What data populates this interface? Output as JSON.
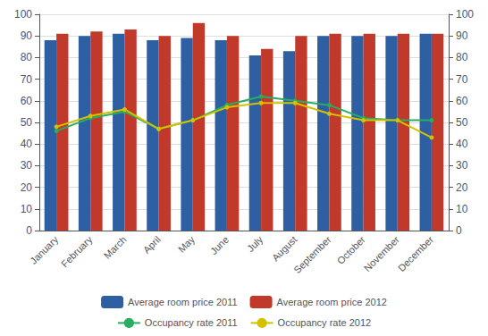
{
  "chart_data": {
    "type": "bar",
    "categories": [
      "January",
      "February",
      "March",
      "April",
      "May",
      "June",
      "July",
      "August",
      "September",
      "October",
      "November",
      "December"
    ],
    "series": [
      {
        "name": "Average room price 2011",
        "type": "bar",
        "color": "#2e5fa3",
        "values": [
          88,
          90,
          91,
          88,
          89,
          88,
          81,
          83,
          90,
          90,
          90,
          91
        ]
      },
      {
        "name": "Average room price 2012",
        "type": "bar",
        "color": "#c0392b",
        "values": [
          91,
          92,
          93,
          90,
          96,
          90,
          84,
          90,
          91,
          91,
          91,
          91
        ]
      },
      {
        "name": "Occupancy rate 2011",
        "type": "line",
        "axis": "y2",
        "marker": "circle",
        "color": "#27ae60",
        "values": [
          46,
          52,
          55,
          47,
          51,
          58,
          62,
          60,
          58,
          52,
          51,
          51
        ]
      },
      {
        "name": "Occupancy rate 2012",
        "type": "line",
        "axis": "y2",
        "marker": "circle",
        "color": "#d4c200",
        "values": [
          48,
          53,
          56,
          47,
          51,
          57,
          59,
          59,
          54,
          51,
          51,
          43
        ]
      }
    ],
    "ylim": [
      0,
      100
    ],
    "yticks": [
      0,
      10,
      20,
      30,
      40,
      50,
      60,
      70,
      80,
      90,
      100
    ],
    "y2lim": [
      0,
      100
    ],
    "y2ticks": [
      0,
      10,
      20,
      30,
      40,
      50,
      60,
      70,
      80,
      90,
      100
    ],
    "grid": true,
    "legend": "bottom"
  }
}
